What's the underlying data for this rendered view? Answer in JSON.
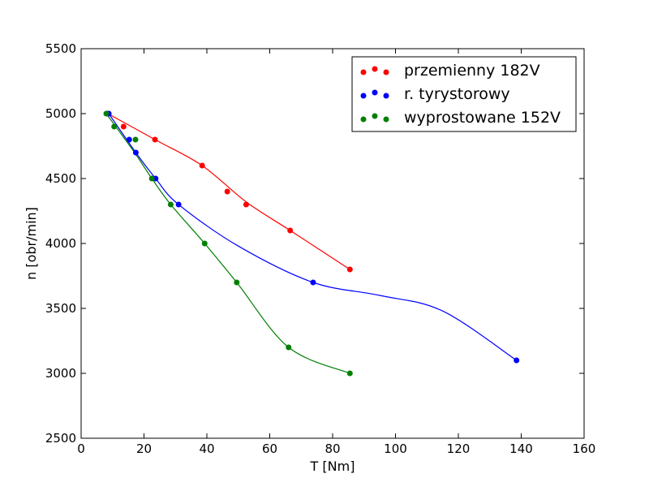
{
  "chart_data": {
    "type": "scatter",
    "title": "",
    "xlabel": "T [Nm]",
    "ylabel": "n [obr/min]",
    "xlim": [
      0,
      160
    ],
    "ylim": [
      2500,
      5500
    ],
    "xticks": [
      "0",
      "20",
      "40",
      "60",
      "80",
      "100",
      "120",
      "140",
      "160"
    ],
    "yticks": [
      "2500",
      "3000",
      "3500",
      "4000",
      "4500",
      "5000",
      "5500"
    ],
    "grid": false,
    "legend_position": "top-right",
    "series": [
      {
        "name": "przemienny 182V",
        "color": "#ff0000",
        "points": [
          [
            8.5,
            5000
          ],
          [
            13.5,
            4900
          ],
          [
            23.5,
            4800
          ],
          [
            38.5,
            4600
          ],
          [
            46.5,
            4400
          ],
          [
            52.5,
            4300
          ],
          [
            66.5,
            4100
          ],
          [
            85.5,
            3800
          ]
        ],
        "curve": [
          [
            8.5,
            5000
          ],
          [
            23.5,
            4800
          ],
          [
            38.5,
            4600
          ],
          [
            52.5,
            4320
          ],
          [
            66.5,
            4100
          ],
          [
            85.5,
            3800
          ]
        ]
      },
      {
        "name": "r. tyrystorowy",
        "color": "#0000ff",
        "points": [
          [
            8.8,
            5000
          ],
          [
            15.3,
            4800
          ],
          [
            17.4,
            4700
          ],
          [
            23.7,
            4500
          ],
          [
            31,
            4300
          ],
          [
            73.8,
            3700
          ],
          [
            138.5,
            3100
          ]
        ],
        "curve": [
          [
            8.8,
            5000
          ],
          [
            17.4,
            4700
          ],
          [
            23.7,
            4500
          ],
          [
            31,
            4300
          ],
          [
            50,
            3980
          ],
          [
            73.8,
            3700
          ],
          [
            95,
            3600
          ],
          [
            115,
            3480
          ],
          [
            138.5,
            3100
          ]
        ]
      },
      {
        "name": "wyprostowane 152V",
        "color": "#008000",
        "points": [
          [
            8,
            5000
          ],
          [
            10.5,
            4900
          ],
          [
            17.3,
            4800
          ],
          [
            22.5,
            4500
          ],
          [
            28.5,
            4300
          ],
          [
            39.3,
            4000
          ],
          [
            49.5,
            3700
          ],
          [
            66,
            3200
          ],
          [
            85.5,
            3000
          ]
        ],
        "curve": [
          [
            8,
            5000
          ],
          [
            17,
            4700
          ],
          [
            22.5,
            4500
          ],
          [
            28.5,
            4300
          ],
          [
            39.3,
            4000
          ],
          [
            49.5,
            3700
          ],
          [
            66,
            3200
          ],
          [
            85.5,
            3000
          ]
        ]
      }
    ]
  }
}
